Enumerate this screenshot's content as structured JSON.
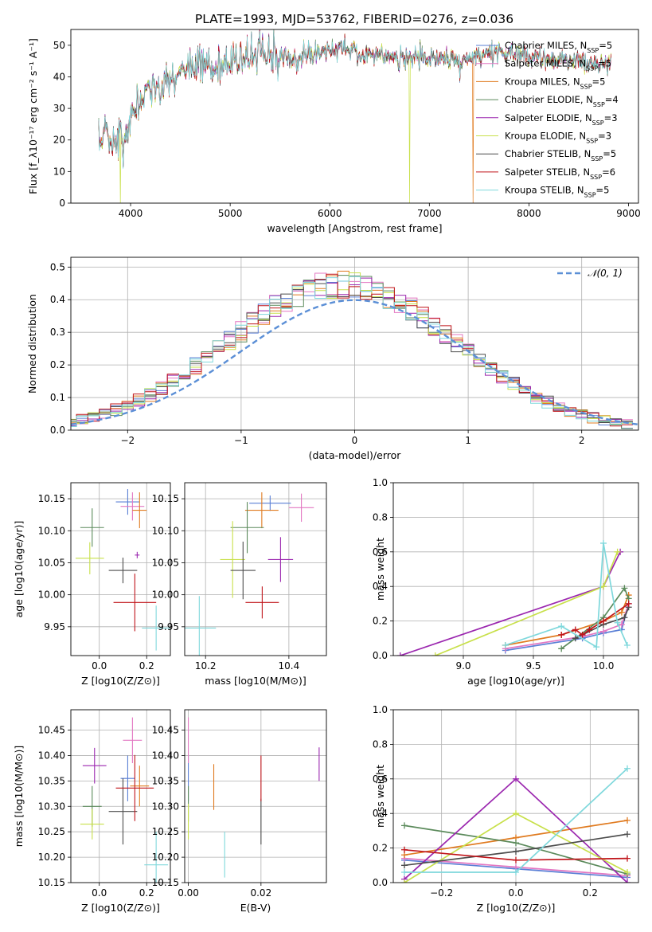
{
  "title": "PLATE=1993, MJD=53762, FIBERID=0276, z=0.036",
  "colors": [
    "#5a7fd6",
    "#e377c2",
    "#e07b20",
    "#5b8a5b",
    "#9b27af",
    "#c8e04a",
    "#4c4c4c",
    "#c0141a",
    "#7fd8dc"
  ],
  "chart_data": [
    {
      "id": "spectrum",
      "type": "line",
      "xlabel": "wavelength [Angstrom, rest frame]",
      "ylabel": "Flux [f_λ10⁻¹⁷ erg cm⁻² s⁻¹ A⁻¹]",
      "xlim": [
        3400,
        9100
      ],
      "ylim": [
        0,
        55
      ],
      "xticks": [
        4000,
        5000,
        6000,
        7000,
        8000,
        9000
      ],
      "yticks": [
        0,
        10,
        20,
        30,
        40,
        50
      ],
      "grid": false,
      "legend": "top-right",
      "series": [
        {
          "name": "Chabrier MILES, N_SSP=5"
        },
        {
          "name": "Salpeter MILES, N_SSP=5"
        },
        {
          "name": "Kroupa MILES, N_SSP=5"
        },
        {
          "name": "Chabrier ELODIE, N_SSP=4"
        },
        {
          "name": "Salpeter ELODIE, N_SSP=3"
        },
        {
          "name": "Kroupa ELODIE, N_SSP=3"
        },
        {
          "name": "Chabrier STELIB, N_SSP=5"
        },
        {
          "name": "Salpeter STELIB, N_SSP=6"
        },
        {
          "name": "Kroupa STELIB, N_SSP=5"
        }
      ],
      "envelope": {
        "x": [
          3680,
          3750,
          3800,
          3900,
          3950,
          4000,
          4100,
          4200,
          4300,
          4400,
          4500,
          4700,
          4900,
          5100,
          5300,
          5500,
          5700,
          5900,
          6100,
          6300,
          6500,
          6700,
          6900,
          7100,
          7300,
          7500,
          7700,
          7900,
          8100,
          8300,
          8500,
          8700,
          8830
        ],
        "y": [
          17,
          24,
          19,
          22,
          18,
          27,
          33,
          36,
          35,
          39,
          41,
          43,
          44,
          46,
          47,
          46,
          46,
          48,
          49,
          47,
          47,
          46,
          46,
          46,
          45,
          47,
          48,
          47,
          46,
          45,
          45,
          44,
          44
        ]
      },
      "spikes": [
        {
          "x": 3900,
          "y": 0
        },
        {
          "x": 6800,
          "y": 0
        },
        {
          "x": 7440,
          "y": 0
        }
      ]
    },
    {
      "id": "residuals",
      "type": "histogram",
      "xlabel": "(data-model)/error",
      "ylabel": "Normed distribution",
      "xlim": [
        -2.5,
        2.5
      ],
      "ylim": [
        0,
        0.53
      ],
      "xticks": [
        -2,
        -1,
        0,
        1,
        2
      ],
      "yticks": [
        0,
        0.1,
        0.2,
        0.3,
        0.4,
        0.5
      ],
      "grid": true,
      "legend": "top-right",
      "reference": {
        "name": "𝒩(0, 1)",
        "type": "gaussian",
        "mu": 0,
        "sigma": 1
      },
      "bin_width": 0.1
    },
    {
      "id": "age-vs-Z",
      "type": "errorbar",
      "xlabel": "Z [log10(Z/Z⊙)]",
      "ylabel": "age [log10(age/yr)]",
      "xlim": [
        -0.12,
        0.3
      ],
      "ylim": [
        9.905,
        10.175
      ],
      "xticks": [
        0.0,
        0.2
      ],
      "yticks": [
        9.95,
        10.0,
        10.05,
        10.1,
        10.15
      ],
      "points": [
        {
          "x": 0.12,
          "y": 10.145,
          "xerr": 0.05,
          "yerr": 0.02
        },
        {
          "x": 0.14,
          "y": 10.138,
          "xerr": 0.05,
          "yerr": 0.022
        },
        {
          "x": 0.17,
          "y": 10.132,
          "xerr": 0.03,
          "yerr": 0.028
        },
        {
          "x": -0.03,
          "y": 10.105,
          "xerr": 0.05,
          "yerr": 0.03
        },
        {
          "x": 0.16,
          "y": 10.062,
          "xerr": 0.01,
          "yerr": 0.005
        },
        {
          "x": -0.04,
          "y": 10.057,
          "xerr": 0.06,
          "yerr": 0.025
        },
        {
          "x": 0.1,
          "y": 10.038,
          "xerr": 0.06,
          "yerr": 0.02
        },
        {
          "x": 0.15,
          "y": 9.988,
          "xerr": 0.09,
          "yerr": 0.045
        },
        {
          "x": 0.24,
          "y": 9.948,
          "xerr": 0.06,
          "yerr": 0.035
        }
      ]
    },
    {
      "id": "age-vs-mass",
      "type": "errorbar",
      "xlabel": "mass [log10(M/M⊙)]",
      "ylabel": "",
      "xlim": [
        10.15,
        10.49
      ],
      "ylim": [
        9.905,
        10.175
      ],
      "xticks": [
        10.2,
        10.4
      ],
      "yticks": [
        9.95,
        10.0,
        10.05,
        10.1,
        10.15
      ],
      "points": [
        {
          "x": 10.355,
          "y": 10.143,
          "xerr": 0.05,
          "yerr": 0.012
        },
        {
          "x": 10.43,
          "y": 10.136,
          "xerr": 0.03,
          "yerr": 0.022
        },
        {
          "x": 10.335,
          "y": 10.132,
          "xerr": 0.04,
          "yerr": 0.028
        },
        {
          "x": 10.3,
          "y": 10.105,
          "xerr": 0.04,
          "yerr": 0.04
        },
        {
          "x": 10.38,
          "y": 10.055,
          "xerr": 0.03,
          "yerr": 0.035
        },
        {
          "x": 10.265,
          "y": 10.055,
          "xerr": 0.03,
          "yerr": 0.06
        },
        {
          "x": 10.29,
          "y": 10.038,
          "xerr": 0.03,
          "yerr": 0.045
        },
        {
          "x": 10.336,
          "y": 9.988,
          "xerr": 0.04,
          "yerr": 0.025
        },
        {
          "x": 10.185,
          "y": 9.948,
          "xerr": 0.04,
          "yerr": 0.05
        }
      ]
    },
    {
      "id": "weight-vs-age",
      "type": "line",
      "xlabel": "age [log10(age/yr)]",
      "ylabel": "mass weight",
      "xlim": [
        8.5,
        10.25
      ],
      "ylim": [
        0,
        1.0
      ],
      "xticks": [
        9.0,
        9.5,
        10.0
      ],
      "yticks": [
        0.0,
        0.2,
        0.4,
        0.6,
        0.8,
        1.0
      ],
      "grid": true,
      "series": [
        {
          "x": [
            9.3,
            9.85,
            10.0,
            10.13,
            10.18
          ],
          "y": [
            0.03,
            0.1,
            0.13,
            0.15,
            0.3
          ]
        },
        {
          "x": [
            9.3,
            9.85,
            10.0,
            10.13,
            10.18
          ],
          "y": [
            0.04,
            0.11,
            0.14,
            0.18,
            0.3
          ]
        },
        {
          "x": [
            9.3,
            9.7,
            10.0,
            10.13,
            10.18
          ],
          "y": [
            0.06,
            0.12,
            0.2,
            0.25,
            0.35
          ]
        },
        {
          "x": [
            9.7,
            10.0,
            10.15,
            10.18
          ],
          "y": [
            0.04,
            0.22,
            0.39,
            0.33
          ]
        },
        {
          "x": [
            8.55,
            10.0,
            10.12
          ],
          "y": [
            0.0,
            0.4,
            0.6
          ]
        },
        {
          "x": [
            8.8,
            10.0,
            10.1
          ],
          "y": [
            0.0,
            0.4,
            0.6
          ]
        },
        {
          "x": [
            9.8,
            10.0,
            10.15,
            10.18
          ],
          "y": [
            0.1,
            0.18,
            0.22,
            0.28
          ]
        },
        {
          "x": [
            9.7,
            9.8,
            9.85,
            9.9,
            10.0,
            10.18
          ],
          "y": [
            0.12,
            0.15,
            0.12,
            0.15,
            0.2,
            0.3
          ]
        },
        {
          "x": [
            9.3,
            9.7,
            9.95,
            10.0,
            10.1,
            10.17
          ],
          "y": [
            0.06,
            0.17,
            0.05,
            0.65,
            0.19,
            0.06
          ]
        }
      ]
    },
    {
      "id": "mass-vs-Z",
      "type": "errorbar",
      "xlabel": "Z [log10(Z/Z⊙)]",
      "ylabel": "mass [log10(M/M⊙)]",
      "xlim": [
        -0.12,
        0.3
      ],
      "ylim": [
        10.15,
        10.49
      ],
      "xticks": [
        0.0,
        0.2
      ],
      "yticks": [
        10.15,
        10.2,
        10.25,
        10.3,
        10.35,
        10.4,
        10.45
      ],
      "points": [
        {
          "x": 0.12,
          "y": 10.355,
          "xerr": 0.03,
          "yerr": 0.045
        },
        {
          "x": 0.14,
          "y": 10.43,
          "xerr": 0.04,
          "yerr": 0.045
        },
        {
          "x": 0.17,
          "y": 10.34,
          "xerr": 0.04,
          "yerr": 0.04
        },
        {
          "x": -0.03,
          "y": 10.3,
          "xerr": 0.04,
          "yerr": 0.04
        },
        {
          "x": -0.02,
          "y": 10.38,
          "xerr": 0.05,
          "yerr": 0.035
        },
        {
          "x": -0.03,
          "y": 10.265,
          "xerr": 0.05,
          "yerr": 0.03
        },
        {
          "x": 0.1,
          "y": 10.29,
          "xerr": 0.06,
          "yerr": 0.065
        },
        {
          "x": 0.15,
          "y": 10.336,
          "xerr": 0.08,
          "yerr": 0.065
        },
        {
          "x": 0.24,
          "y": 10.185,
          "xerr": 0.05,
          "yerr": 0.065
        }
      ]
    },
    {
      "id": "mass-vs-EBV",
      "type": "errorbar",
      "xlabel": "E(B-V)",
      "ylabel": "",
      "xlim": [
        -0.001,
        0.038
      ],
      "ylim": [
        10.15,
        10.49
      ],
      "xticks": [
        0.0,
        0.02
      ],
      "yticks": [
        10.15,
        10.2,
        10.25,
        10.3,
        10.35,
        10.4,
        10.45
      ],
      "points": [
        {
          "x": 0.0,
          "y": 10.355,
          "xerr": 0.0,
          "yerr": 0.045
        },
        {
          "x": 0.0,
          "y": 10.43,
          "xerr": 0.0,
          "yerr": 0.045
        },
        {
          "x": 0.007,
          "y": 10.338,
          "xerr": 0.0,
          "yerr": 0.045
        },
        {
          "x": 0.0,
          "y": 10.305,
          "xerr": 0.0,
          "yerr": 0.035
        },
        {
          "x": 0.036,
          "y": 10.383,
          "xerr": 0.0,
          "yerr": 0.033
        },
        {
          "x": 0.0,
          "y": 10.27,
          "xerr": 0.0,
          "yerr": 0.035
        },
        {
          "x": 0.02,
          "y": 10.27,
          "xerr": 0.0,
          "yerr": 0.045
        },
        {
          "x": 0.02,
          "y": 10.355,
          "xerr": 0.0,
          "yerr": 0.045
        },
        {
          "x": 0.01,
          "y": 10.205,
          "xerr": 0.0,
          "yerr": 0.045
        }
      ]
    },
    {
      "id": "weight-vs-Z",
      "type": "line",
      "xlabel": "Z [log10(Z/Z⊙)]",
      "ylabel": "mass weight",
      "xlim": [
        -0.33,
        0.33
      ],
      "ylim": [
        0,
        1.0
      ],
      "xticks": [
        -0.2,
        0.0,
        0.2
      ],
      "yticks": [
        0.0,
        0.2,
        0.4,
        0.6,
        0.8,
        1.0
      ],
      "grid": true,
      "series": [
        {
          "x": [
            -0.3,
            0.0,
            0.3
          ],
          "y": [
            0.13,
            0.08,
            0.03
          ]
        },
        {
          "x": [
            -0.3,
            0.0,
            0.3
          ],
          "y": [
            0.14,
            0.09,
            0.04
          ]
        },
        {
          "x": [
            -0.3,
            0.0,
            0.3
          ],
          "y": [
            0.16,
            0.26,
            0.36
          ]
        },
        {
          "x": [
            -0.3,
            0.0,
            0.3
          ],
          "y": [
            0.33,
            0.23,
            0.05
          ]
        },
        {
          "x": [
            -0.3,
            0.0,
            0.3
          ],
          "y": [
            0.02,
            0.6,
            0.0
          ]
        },
        {
          "x": [
            -0.3,
            0.0,
            0.3
          ],
          "y": [
            0.0,
            0.4,
            0.06
          ]
        },
        {
          "x": [
            -0.3,
            0.0,
            0.3
          ],
          "y": [
            0.1,
            0.18,
            0.28
          ]
        },
        {
          "x": [
            -0.3,
            0.0,
            0.3
          ],
          "y": [
            0.19,
            0.13,
            0.14
          ]
        },
        {
          "x": [
            -0.3,
            0.0,
            0.3
          ],
          "y": [
            0.06,
            0.06,
            0.66
          ]
        }
      ]
    }
  ]
}
